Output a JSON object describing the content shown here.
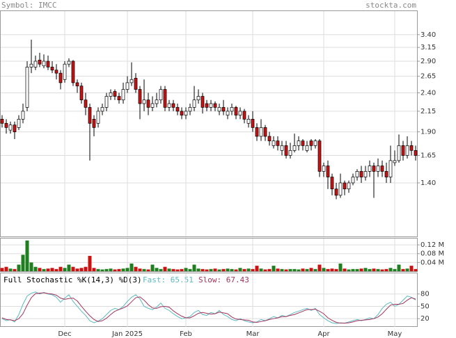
{
  "header": {
    "symbol": "Symbol: IMCC",
    "site": "stockta.com"
  },
  "chart_data": [
    {
      "type": "candlestick",
      "log_y": true,
      "grid": true,
      "up_color": "#ffffff",
      "down_color": "#cc1111",
      "ylim": [
        1.016,
        3.93
      ],
      "yticks": [
        {
          "value": 3.4,
          "label": "3.40"
        },
        3.15,
        {
          "value": 2.9,
          "label": "2.90"
        },
        2.65,
        {
          "value": 2.4,
          "label": "2.40"
        },
        2.15,
        {
          "value": 1.9,
          "label": "1.90"
        },
        1.65,
        {
          "value": 1.4,
          "label": "1.40"
        }
      ],
      "open": [
        2.05,
        2.0,
        1.92,
        1.98,
        1.95,
        2.05,
        2.2,
        2.8,
        2.8,
        2.92,
        2.82,
        2.9,
        2.8,
        2.75,
        2.7,
        2.6,
        2.85,
        2.9,
        2.55,
        2.5,
        2.3,
        2.2,
        2.05,
        2.0,
        2.15,
        2.2,
        2.35,
        2.42,
        2.35,
        2.3,
        2.45,
        2.55,
        2.62,
        2.45,
        2.25,
        2.3,
        2.2,
        2.25,
        2.3,
        2.45,
        2.2,
        2.25,
        2.2,
        2.15,
        2.1,
        2.15,
        2.2,
        2.3,
        2.35,
        2.25,
        2.2,
        2.25,
        2.15,
        2.2,
        2.1,
        2.15,
        2.2,
        2.1,
        2.15,
        2.0,
        2.05,
        1.95,
        1.85,
        1.95,
        1.85,
        1.75,
        1.8,
        1.7,
        1.75,
        1.65,
        1.7,
        1.75,
        1.8,
        1.7,
        1.8,
        1.75,
        1.8,
        1.5,
        1.55,
        1.45,
        1.35,
        1.3,
        1.4,
        1.35,
        1.4,
        1.45,
        1.5,
        1.45,
        1.5,
        1.55,
        1.5,
        1.55,
        1.5,
        1.45,
        1.58,
        1.6,
        1.75,
        1.65,
        1.75,
        1.7
      ],
      "high": [
        2.1,
        2.05,
        2.02,
        2.02,
        2.1,
        2.25,
        2.9,
        3.3,
        3.0,
        3.05,
        3.02,
        3.0,
        2.9,
        2.85,
        2.75,
        2.9,
        2.95,
        2.92,
        2.6,
        2.55,
        2.4,
        2.25,
        2.1,
        2.2,
        2.25,
        2.4,
        2.45,
        2.45,
        2.4,
        2.55,
        2.65,
        2.88,
        2.7,
        2.5,
        2.6,
        2.4,
        2.35,
        2.4,
        2.5,
        2.5,
        2.3,
        2.3,
        2.25,
        2.2,
        2.2,
        2.25,
        2.5,
        2.45,
        2.4,
        2.3,
        2.3,
        2.28,
        2.25,
        2.3,
        2.2,
        2.25,
        2.22,
        2.2,
        2.18,
        2.1,
        2.15,
        2.0,
        2.05,
        1.98,
        1.9,
        1.85,
        1.85,
        1.8,
        1.8,
        1.78,
        1.88,
        1.85,
        1.82,
        1.8,
        1.82,
        1.82,
        1.82,
        1.58,
        1.6,
        1.48,
        1.4,
        1.48,
        1.42,
        1.42,
        1.48,
        1.52,
        1.55,
        1.55,
        1.6,
        1.58,
        1.62,
        1.6,
        1.58,
        1.75,
        1.7,
        1.87,
        1.8,
        1.85,
        1.8,
        1.75
      ],
      "low": [
        1.95,
        1.88,
        1.88,
        1.82,
        1.92,
        2.0,
        2.15,
        2.7,
        2.75,
        2.8,
        2.78,
        2.75,
        2.7,
        2.6,
        2.45,
        2.55,
        2.8,
        2.5,
        2.4,
        2.25,
        2.1,
        1.6,
        1.85,
        1.95,
        2.1,
        2.15,
        2.3,
        2.3,
        2.25,
        2.25,
        2.4,
        2.5,
        2.4,
        2.05,
        2.15,
        2.1,
        2.15,
        2.2,
        2.25,
        2.15,
        2.15,
        2.15,
        2.1,
        2.05,
        2.05,
        2.1,
        2.15,
        2.25,
        2.12,
        2.15,
        2.15,
        2.15,
        2.1,
        2.1,
        2.05,
        2.1,
        2.05,
        2.05,
        2.0,
        1.95,
        1.9,
        1.8,
        1.8,
        1.8,
        1.75,
        1.72,
        1.7,
        1.65,
        1.62,
        1.62,
        1.68,
        1.7,
        1.7,
        1.68,
        1.7,
        1.72,
        1.45,
        1.45,
        1.35,
        1.3,
        1.27,
        1.28,
        1.3,
        1.32,
        1.38,
        1.42,
        1.4,
        1.42,
        1.45,
        1.28,
        1.45,
        1.45,
        1.4,
        1.4,
        1.55,
        1.58,
        1.6,
        1.62,
        1.65,
        1.6
      ],
      "close": [
        2.0,
        1.95,
        1.98,
        1.9,
        2.05,
        2.15,
        2.8,
        2.85,
        2.9,
        2.85,
        2.9,
        2.8,
        2.75,
        2.7,
        2.55,
        2.85,
        2.9,
        2.55,
        2.5,
        2.3,
        2.2,
        2.0,
        1.95,
        2.15,
        2.2,
        2.35,
        2.4,
        2.35,
        2.3,
        2.45,
        2.55,
        2.6,
        2.45,
        2.25,
        2.3,
        2.2,
        2.25,
        2.3,
        2.45,
        2.2,
        2.25,
        2.2,
        2.15,
        2.1,
        2.15,
        2.2,
        2.3,
        2.35,
        2.2,
        2.2,
        2.25,
        2.2,
        2.2,
        2.15,
        2.15,
        2.2,
        2.1,
        2.15,
        2.05,
        2.05,
        1.95,
        1.85,
        1.95,
        1.85,
        1.8,
        1.8,
        1.75,
        1.75,
        1.65,
        1.7,
        1.75,
        1.8,
        1.75,
        1.75,
        1.75,
        1.8,
        1.5,
        1.55,
        1.45,
        1.35,
        1.3,
        1.4,
        1.35,
        1.4,
        1.45,
        1.5,
        1.45,
        1.5,
        1.55,
        1.5,
        1.55,
        1.5,
        1.45,
        1.6,
        1.6,
        1.75,
        1.65,
        1.75,
        1.7,
        1.65
      ]
    },
    {
      "type": "bar",
      "up_color": "#1f7f1f",
      "down_color": "#cc1111",
      "ylim": [
        0,
        0.152
      ],
      "yticks": [
        {
          "value": 0.12,
          "label": "0.12 M"
        },
        {
          "value": 0.08,
          "label": "0.08 M"
        },
        {
          "value": 0.04,
          "label": "0.04 M"
        }
      ],
      "values": [
        0.015,
        0.02,
        0.012,
        0.01,
        0.03,
        0.075,
        0.14,
        0.04,
        0.02,
        0.015,
        0.01,
        0.012,
        0.015,
        0.01,
        0.02,
        0.015,
        0.03,
        0.02,
        0.012,
        0.015,
        0.02,
        0.07,
        0.015,
        0.01,
        0.008,
        0.01,
        0.012,
        0.008,
        0.01,
        0.012,
        0.015,
        0.035,
        0.02,
        0.012,
        0.01,
        0.008,
        0.03,
        0.015,
        0.01,
        0.02,
        0.012,
        0.01,
        0.008,
        0.01,
        0.015,
        0.01,
        0.03,
        0.012,
        0.01,
        0.008,
        0.01,
        0.012,
        0.008,
        0.01,
        0.012,
        0.01,
        0.008,
        0.015,
        0.01,
        0.012,
        0.01,
        0.025,
        0.012,
        0.008,
        0.01,
        0.025,
        0.012,
        0.01,
        0.008,
        0.01,
        0.01,
        0.008,
        0.012,
        0.01,
        0.015,
        0.01,
        0.03,
        0.015,
        0.01,
        0.012,
        0.01,
        0.035,
        0.012,
        0.008,
        0.01,
        0.01,
        0.012,
        0.015,
        0.01,
        0.012,
        0.01,
        0.008,
        0.01,
        0.015,
        0.01,
        0.03,
        0.01,
        0.012,
        0.025,
        0.01
      ]
    },
    {
      "type": "line",
      "title": "Full Stochastic %K(14,3) %D(3)",
      "ylim": [
        0,
        132
      ],
      "yticks": [
        80,
        50,
        20
      ],
      "categories": [
        null,
        null,
        null,
        null,
        null,
        null,
        null,
        null,
        null,
        null,
        null,
        null,
        null,
        null,
        null,
        "Dec",
        null,
        null,
        null,
        null,
        null,
        null,
        null,
        null,
        null,
        null,
        null,
        null,
        null,
        null,
        "Jan 2025",
        null,
        null,
        null,
        null,
        null,
        null,
        null,
        null,
        null,
        null,
        null,
        null,
        null,
        "Feb",
        null,
        null,
        null,
        null,
        null,
        null,
        null,
        null,
        null,
        null,
        null,
        null,
        null,
        null,
        null,
        "Mar",
        null,
        null,
        null,
        null,
        null,
        null,
        null,
        null,
        null,
        null,
        null,
        null,
        null,
        null,
        null,
        null,
        "Apr",
        null,
        null,
        null,
        null,
        null,
        null,
        null,
        null,
        null,
        null,
        null,
        null,
        null,
        null,
        null,
        null,
        "May",
        null,
        null,
        null,
        null,
        null
      ],
      "series": [
        {
          "name": "Fast:",
          "last": 65.51,
          "color": "#5bb8c4",
          "values": [
            20,
            15,
            18,
            12,
            30,
            55,
            75,
            82,
            85,
            80,
            84,
            80,
            78,
            72,
            60,
            70,
            78,
            62,
            50,
            38,
            28,
            15,
            10,
            14,
            20,
            30,
            40,
            45,
            42,
            50,
            62,
            72,
            78,
            68,
            50,
            45,
            42,
            48,
            58,
            45,
            40,
            32,
            25,
            20,
            22,
            25,
            35,
            40,
            30,
            28,
            35,
            32,
            40,
            30,
            25,
            18,
            15,
            20,
            15,
            12,
            10,
            12,
            18,
            15,
            20,
            25,
            22,
            28,
            25,
            30,
            35,
            38,
            42,
            45,
            40,
            45,
            30,
            22,
            15,
            10,
            8,
            10,
            9,
            12,
            15,
            18,
            15,
            18,
            22,
            20,
            30,
            45,
            55,
            60,
            50,
            55,
            65,
            75,
            72,
            65.51
          ]
        },
        {
          "name": "Slow:",
          "last": 67.43,
          "color": "#a3335a",
          "values": [
            22,
            18,
            17,
            15,
            20,
            32,
            53,
            71,
            81,
            82,
            83,
            81,
            80,
            77,
            70,
            67,
            69,
            70,
            63,
            50,
            38,
            27,
            18,
            13,
            15,
            21,
            30,
            38,
            42,
            46,
            51,
            61,
            71,
            73,
            65,
            54,
            46,
            45,
            49,
            50,
            48,
            39,
            32,
            26,
            22,
            22,
            27,
            33,
            35,
            33,
            31,
            32,
            36,
            34,
            32,
            24,
            19,
            18,
            17,
            16,
            12,
            11,
            13,
            15,
            18,
            20,
            22,
            25,
            25,
            28,
            30,
            34,
            38,
            42,
            42,
            43,
            38,
            32,
            22,
            16,
            11,
            9,
            9,
            10,
            12,
            15,
            16,
            17,
            18,
            20,
            24,
            32,
            43,
            53,
            55,
            55,
            57,
            65,
            71,
            67.43
          ]
        }
      ]
    }
  ]
}
